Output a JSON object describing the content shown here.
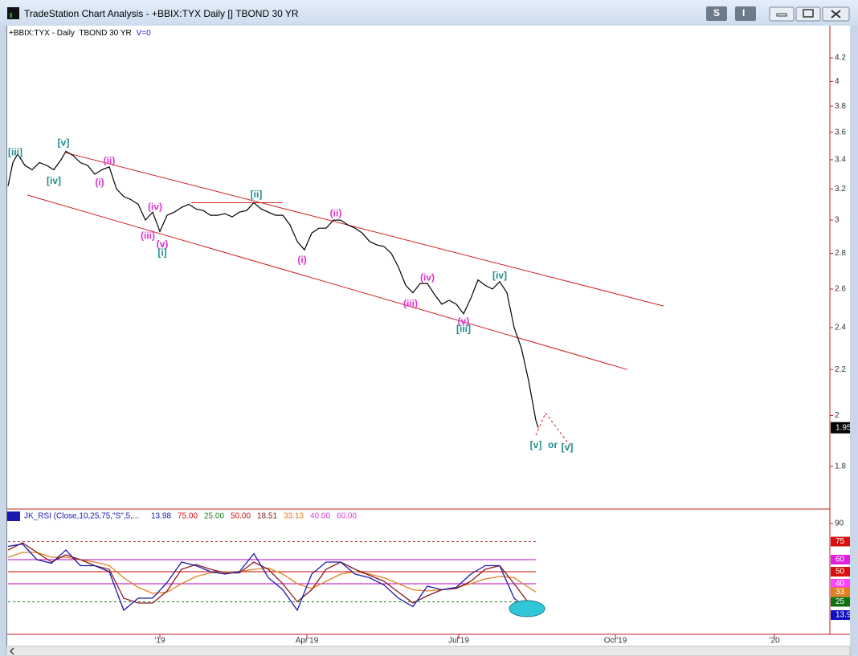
{
  "window": {
    "title": "TradeStation Chart Analysis - +BBIX:TYX Daily [] TBOND 30 YR",
    "buttons": [
      "S",
      "I"
    ]
  },
  "chart_data": [
    {
      "type": "line",
      "header": "+BBIX:TYX - Daily  TBOND 30 YR",
      "volume_label": "V=0",
      "color": "#000000",
      "log_scale": true,
      "x": [
        0,
        2,
        4,
        7,
        10,
        13,
        16,
        19,
        22,
        24,
        27,
        30,
        33,
        36,
        39,
        42,
        45,
        48,
        51,
        54,
        57,
        60,
        63,
        66,
        69,
        72,
        75,
        78,
        81,
        84,
        87,
        90,
        93,
        96,
        99,
        102,
        105,
        108,
        111,
        114,
        117,
        120,
        123,
        126,
        129,
        132,
        135,
        138,
        141,
        144,
        147,
        150,
        153,
        156,
        159,
        162,
        165,
        168,
        171,
        174,
        177,
        180,
        183,
        186,
        189,
        192,
        195,
        198,
        201,
        204,
        207,
        210,
        213,
        216,
        219,
        220
      ],
      "values": [
        3.22,
        3.38,
        3.44,
        3.36,
        3.33,
        3.38,
        3.36,
        3.33,
        3.4,
        3.46,
        3.43,
        3.38,
        3.36,
        3.3,
        3.33,
        3.35,
        3.2,
        3.15,
        3.13,
        3.1,
        3.0,
        3.05,
        2.93,
        3.03,
        3.05,
        3.08,
        3.1,
        3.07,
        3.06,
        3.03,
        3.03,
        3.04,
        3.02,
        3.05,
        3.06,
        3.11,
        3.07,
        3.05,
        3.03,
        3.03,
        2.97,
        2.87,
        2.82,
        2.92,
        2.95,
        2.95,
        3.0,
        3.0,
        2.97,
        2.95,
        2.92,
        2.87,
        2.85,
        2.84,
        2.8,
        2.72,
        2.62,
        2.58,
        2.63,
        2.63,
        2.57,
        2.52,
        2.54,
        2.52,
        2.47,
        2.55,
        2.65,
        2.62,
        2.6,
        2.64,
        2.58,
        2.4,
        2.3,
        2.15,
        1.98,
        1.95
      ],
      "xlim": [
        0,
        341
      ],
      "xticks": [
        {
          "value": 63,
          "label": "'19"
        },
        {
          "value": 124,
          "label": "Apr'19"
        },
        {
          "value": 187,
          "label": "Jul'19"
        },
        {
          "value": 252,
          "label": "Oct'19"
        },
        {
          "value": 318,
          "label": "'20"
        }
      ],
      "ylim": [
        1.65,
        4.49
      ],
      "yticks": [
        4.2,
        4,
        3.8,
        3.6,
        3.4,
        3.2,
        3,
        2.8,
        2.6,
        2.4,
        2.2,
        2,
        1.8
      ],
      "trend_lines": [
        {
          "x": [
            24,
            272
          ],
          "values": [
            3.45,
            2.51
          ],
          "color": "#d02020",
          "dash": false
        },
        {
          "x": [
            8,
            257
          ],
          "values": [
            3.16,
            2.2
          ],
          "color": "#d02020",
          "dash": false
        },
        {
          "x": [
            76,
            114
          ],
          "values": [
            3.11,
            3.11
          ],
          "color": "#d02020",
          "dash": false
        },
        {
          "x": [
            219,
            223,
            234
          ],
          "values": [
            1.92,
            2.01,
            1.87
          ],
          "color": "#e02020",
          "dash": true
        }
      ],
      "wave_labels": [
        {
          "text": "[iii]",
          "x": 3,
          "y": 3.45,
          "color": "#208c8c"
        },
        {
          "text": "[v]",
          "x": 23,
          "y": 3.52,
          "color": "#208c8c"
        },
        {
          "text": "[iv]",
          "x": 19,
          "y": 3.25,
          "color": "#208c8c"
        },
        {
          "text": "(i)",
          "x": 38,
          "y": 3.24,
          "color": "#e030d0"
        },
        {
          "text": "(ii)",
          "x": 42,
          "y": 3.39,
          "color": "#e030d0"
        },
        {
          "text": "(iv)",
          "x": 61,
          "y": 3.08,
          "color": "#e030d0"
        },
        {
          "text": "(iii)",
          "x": 58,
          "y": 2.9,
          "color": "#e030d0"
        },
        {
          "text": "(v)",
          "x": 64,
          "y": 2.85,
          "color": "#e030d0"
        },
        {
          "text": "[i]",
          "x": 64,
          "y": 2.8,
          "color": "#208c8c"
        },
        {
          "text": "[ii]",
          "x": 103,
          "y": 3.16,
          "color": "#208c8c"
        },
        {
          "text": "(i)",
          "x": 122,
          "y": 2.76,
          "color": "#e030d0"
        },
        {
          "text": "(ii)",
          "x": 136,
          "y": 3.04,
          "color": "#e030d0"
        },
        {
          "text": "(iv)",
          "x": 174,
          "y": 2.66,
          "color": "#e030d0"
        },
        {
          "text": "(iii)",
          "x": 167,
          "y": 2.52,
          "color": "#e030d0"
        },
        {
          "text": "(v)",
          "x": 189,
          "y": 2.43,
          "color": "#e030d0"
        },
        {
          "text": "[iii]",
          "x": 189,
          "y": 2.39,
          "color": "#208c8c"
        },
        {
          "text": "[iv]",
          "x": 204,
          "y": 2.67,
          "color": "#208c8c"
        },
        {
          "text": "[v]",
          "x": 219,
          "y": 1.88,
          "color": "#208c8c"
        },
        {
          "text": "or",
          "x": 226,
          "y": 1.88,
          "color": "#208c8c"
        },
        {
          "text": "[v]",
          "x": 232,
          "y": 1.87,
          "color": "#208c8c"
        }
      ]
    },
    {
      "type": "line",
      "header": "JK_RSI (Close,10,25,75,\"S\",5,...",
      "header_values": [
        {
          "label": "13.98",
          "color": "#1a1ab0"
        },
        {
          "label": "75.00",
          "color": "#d81010"
        },
        {
          "label": "25.00",
          "color": "#208020"
        },
        {
          "label": "50.00",
          "color": "#d81010"
        },
        {
          "label": "18.51",
          "color": "#8b1a1a"
        },
        {
          "label": "33.13",
          "color": "#e08020"
        },
        {
          "label": "40.00",
          "color": "#e040e0"
        },
        {
          "label": "60.00",
          "color": "#e040e0"
        }
      ],
      "x": [
        0,
        6,
        12,
        18,
        24,
        30,
        36,
        42,
        48,
        54,
        60,
        66,
        72,
        78,
        84,
        90,
        96,
        102,
        108,
        114,
        120,
        126,
        132,
        138,
        144,
        150,
        156,
        162,
        168,
        174,
        180,
        186,
        192,
        198,
        204,
        210,
        216,
        219
      ],
      "series": [
        {
          "color": "#e08020",
          "values": [
            62,
            66,
            66,
            62,
            62,
            60,
            58,
            55,
            45,
            37,
            32,
            33,
            40,
            46,
            49,
            50,
            50,
            52,
            53,
            48,
            40,
            36,
            42,
            48,
            50,
            48,
            45,
            40,
            35,
            34,
            35,
            37,
            40,
            44,
            46,
            45,
            37,
            33.13
          ]
        },
        {
          "color": "#8b1a1a",
          "values": [
            68,
            74,
            66,
            58,
            64,
            60,
            55,
            52,
            28,
            24,
            24,
            34,
            52,
            56,
            52,
            49,
            49,
            58,
            52,
            40,
            25,
            35,
            52,
            58,
            52,
            47,
            42,
            33,
            24,
            30,
            35,
            36,
            42,
            52,
            55,
            40,
            24,
            18.51
          ]
        },
        {
          "color": "#1a1ab0",
          "values": [
            71,
            73,
            60,
            57,
            68,
            55,
            55,
            50,
            18,
            28,
            28,
            41,
            58,
            55,
            50,
            48,
            50,
            65,
            45,
            35,
            18,
            48,
            58,
            58,
            48,
            45,
            39,
            28,
            21,
            38,
            35,
            37,
            48,
            55,
            55,
            28,
            18,
            13.98
          ]
        }
      ],
      "ylim": [
        -2,
        100
      ],
      "yticks": [
        90
      ],
      "ref_lines": [
        {
          "value": 75,
          "color": "#b04030",
          "dash": true
        },
        {
          "value": 60,
          "color": "#c000c0",
          "dash": false
        },
        {
          "value": 50,
          "color": "#d00000",
          "dash": false
        },
        {
          "value": 40,
          "color": "#c000c0",
          "dash": false
        },
        {
          "value": 25,
          "color": "#208020",
          "dash": true
        }
      ],
      "level_markers": [
        {
          "value": 75,
          "color": "#d81010"
        },
        {
          "value": 60,
          "color": "#e020e0"
        },
        {
          "value": 50,
          "color": "#d81010"
        },
        {
          "value": 40,
          "color": "#ff40ff"
        },
        {
          "value": 33.13,
          "label": "33",
          "color": "#e08020"
        },
        {
          "value": 25,
          "color": "#107010"
        },
        {
          "value": 13.98,
          "color": "#1010c0"
        }
      ]
    }
  ]
}
